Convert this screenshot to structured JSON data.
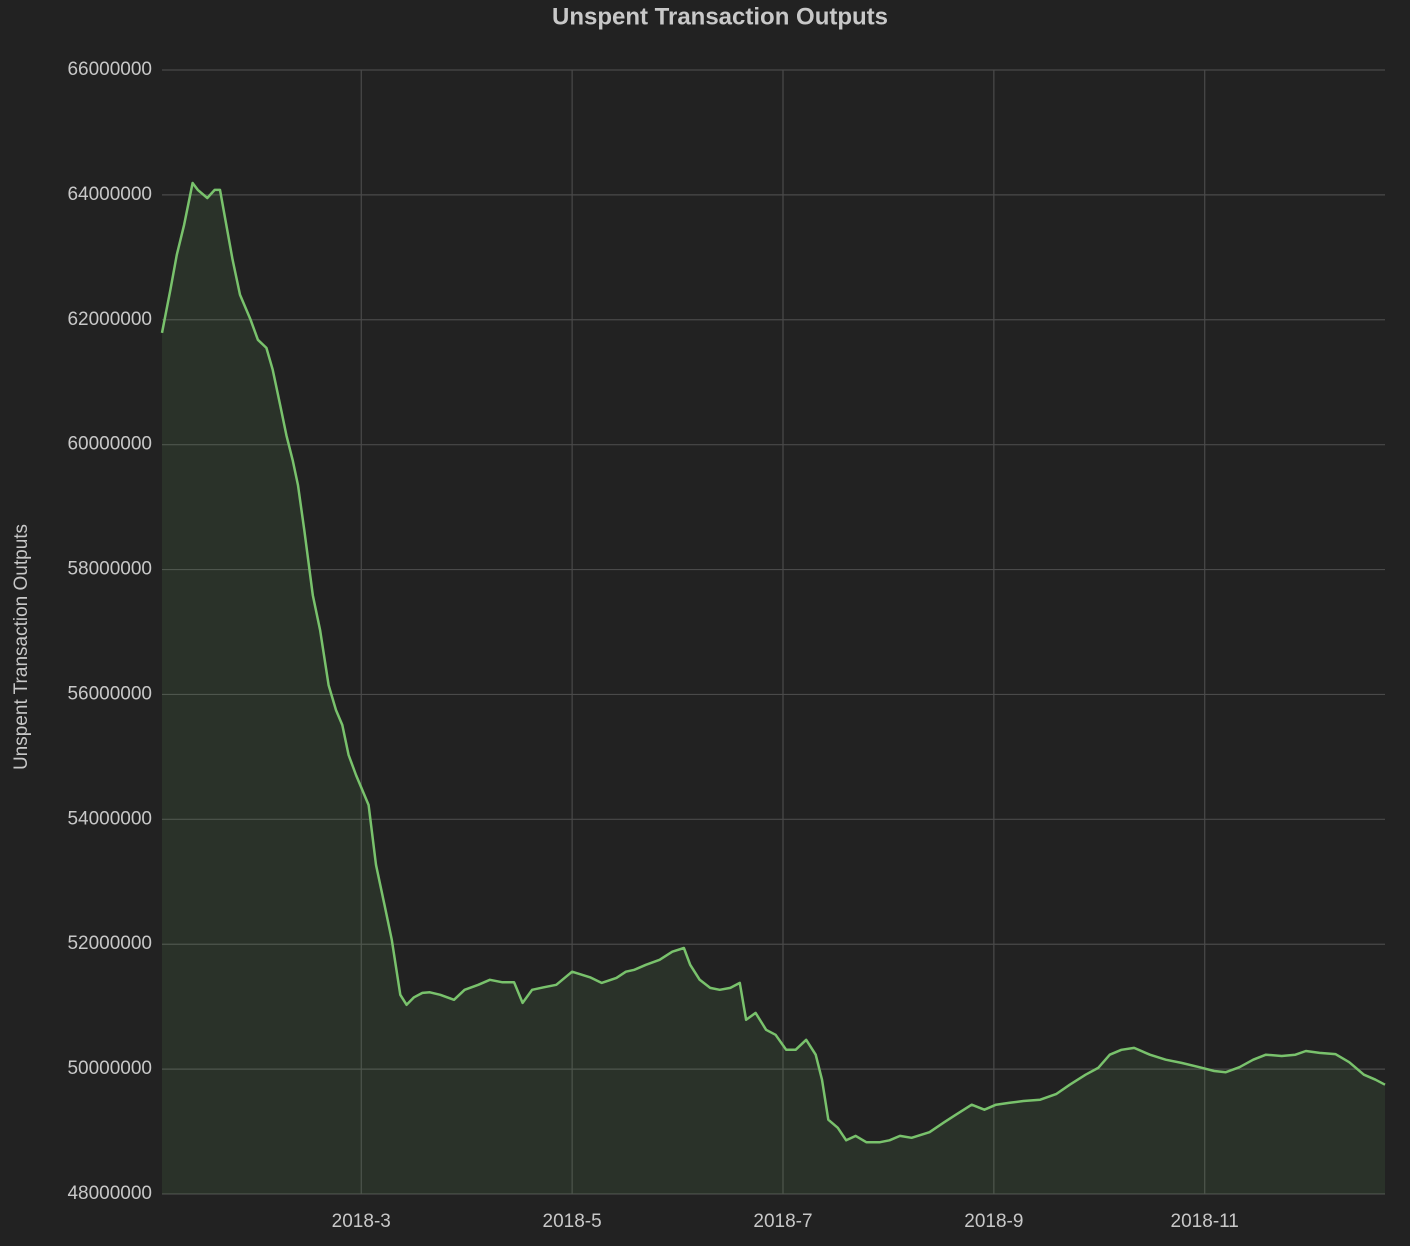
{
  "chart_data": {
    "type": "area",
    "title": "Unspent Transaction Outputs",
    "y_label": "Unspent Transaction Outputs",
    "color": "#79c26c",
    "grid": true,
    "xlim": [
      1.11,
      12.71
    ],
    "xticks": [
      {
        "value": 3,
        "label": "2018-3"
      },
      {
        "value": 5,
        "label": "2018-5"
      },
      {
        "value": 7,
        "label": "2018-7"
      },
      {
        "value": 9,
        "label": "2018-9"
      },
      {
        "value": 11,
        "label": "2018-11"
      }
    ],
    "ylim": [
      48000000,
      66000000
    ],
    "yticks": [
      48000000,
      50000000,
      52000000,
      54000000,
      56000000,
      58000000,
      60000000,
      62000000,
      64000000,
      66000000
    ],
    "x": [
      1.11,
      1.19,
      1.25,
      1.32,
      1.4,
      1.45,
      1.54,
      1.61,
      1.66,
      1.72,
      1.78,
      1.85,
      1.95,
      2.02,
      2.1,
      2.16,
      2.23,
      2.29,
      2.35,
      2.4,
      2.46,
      2.54,
      2.61,
      2.69,
      2.76,
      2.82,
      2.88,
      2.95,
      3.01,
      3.07,
      3.14,
      3.22,
      3.29,
      3.37,
      3.43,
      3.5,
      3.58,
      3.65,
      3.75,
      3.88,
      3.98,
      4.11,
      4.22,
      4.34,
      4.45,
      4.53,
      4.62,
      4.73,
      4.85,
      5.0,
      5.17,
      5.28,
      5.42,
      5.51,
      5.59,
      5.7,
      5.83,
      5.95,
      6.06,
      6.12,
      6.21,
      6.31,
      6.4,
      6.5,
      6.59,
      6.65,
      6.74,
      6.84,
      6.93,
      7.03,
      7.12,
      7.22,
      7.31,
      7.37,
      7.43,
      7.52,
      7.6,
      7.69,
      7.79,
      7.92,
      8.01,
      8.11,
      8.22,
      8.39,
      8.53,
      8.64,
      8.79,
      8.91,
      9.02,
      9.15,
      9.28,
      9.44,
      9.59,
      9.72,
      9.87,
      9.99,
      10.1,
      10.21,
      10.33,
      10.48,
      10.63,
      10.78,
      10.95,
      11.09,
      11.2,
      11.33,
      11.46,
      11.58,
      11.73,
      11.86,
      11.96,
      12.09,
      12.24,
      12.37,
      12.51,
      12.62,
      12.71
    ],
    "values": [
      61790000,
      62480000,
      63040000,
      63520000,
      64190000,
      64080000,
      63950000,
      64080000,
      64080000,
      63520000,
      62960000,
      62400000,
      62000000,
      61680000,
      61550000,
      61200000,
      60640000,
      60150000,
      59750000,
      59350000,
      58630000,
      57590000,
      57030000,
      56150000,
      55750000,
      55510000,
      55030000,
      54710000,
      54470000,
      54230000,
      53270000,
      52630000,
      52070000,
      51190000,
      51030000,
      51150000,
      51220000,
      51230000,
      51190000,
      51110000,
      51270000,
      51350000,
      51430000,
      51390000,
      51390000,
      51060000,
      51270000,
      51310000,
      51350000,
      51560000,
      51470000,
      51380000,
      51460000,
      51560000,
      51590000,
      51670000,
      51750000,
      51880000,
      51940000,
      51670000,
      51430000,
      51300000,
      51270000,
      51300000,
      51380000,
      50790000,
      50900000,
      50630000,
      50550000,
      50310000,
      50310000,
      50470000,
      50230000,
      49830000,
      49190000,
      49060000,
      48860000,
      48930000,
      48830000,
      48830000,
      48860000,
      48930000,
      48900000,
      48990000,
      49150000,
      49270000,
      49430000,
      49350000,
      49430000,
      49460000,
      49490000,
      49510000,
      49600000,
      49750000,
      49910000,
      50020000,
      50230000,
      50310000,
      50340000,
      50230000,
      50150000,
      50100000,
      50030000,
      49970000,
      49950000,
      50030000,
      50150000,
      50230000,
      50210000,
      50230000,
      50290000,
      50260000,
      50240000,
      50110000,
      49910000,
      49830000,
      49750000
    ]
  }
}
